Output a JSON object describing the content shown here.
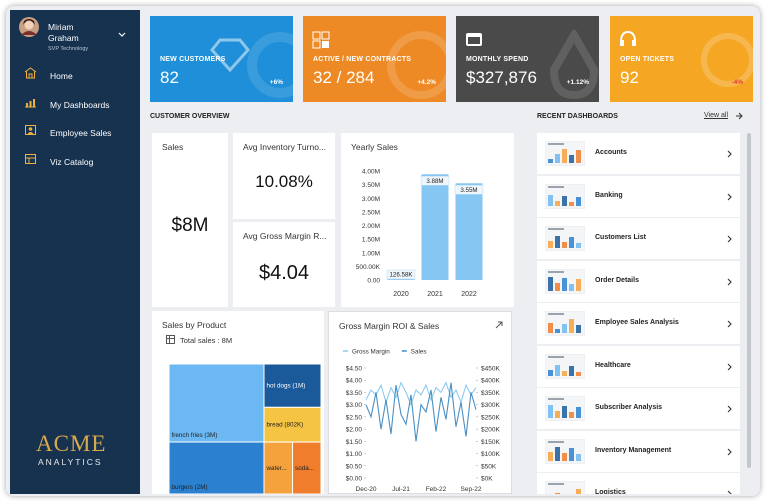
{
  "user": {
    "name": "Miriam Graham",
    "role": "SVP Technology"
  },
  "nav": [
    "Home",
    "My Dashboards",
    "Employee Sales",
    "Viz Catalog"
  ],
  "logo": {
    "top": "ACME",
    "bottom": "ANALYTICS"
  },
  "kpis": [
    {
      "title": "NEW CUSTOMERS",
      "value": "82",
      "change": "+6%"
    },
    {
      "title": "ACTIVE / NEW CONTRACTS",
      "value": "32 / 284",
      "change": "+4.2%"
    },
    {
      "title": "MONTHLY SPEND",
      "value": "$327,876",
      "change": "+1.12%"
    },
    {
      "title": "OPEN TICKETS",
      "value": "92",
      "change": "-4%"
    }
  ],
  "overview": {
    "title": "CUSTOMER OVERVIEW",
    "cards": [
      {
        "title": "Sales",
        "value": "$8M"
      },
      {
        "title": "Avg Inventory Turno...",
        "value": "10.08%"
      },
      {
        "title": "Avg Gross Margin R...",
        "value": "$4.04"
      }
    ]
  },
  "recent": {
    "title": "RECENT DASHBOARDS",
    "link": "View all",
    "items": [
      "Accounts",
      "Banking",
      "Customers List",
      "Order Details",
      "Employee Sales Analysis",
      "Healthcare",
      "Subscriber Analysis",
      "Inventory Management",
      "Logistics"
    ]
  },
  "chart_data": [
    {
      "type": "bar",
      "title": "Yearly Sales",
      "categories": [
        "2020",
        "2021",
        "2022"
      ],
      "values": [
        126580,
        3880000,
        3550000
      ],
      "value_labels": [
        "126.58K",
        "3.88M",
        "3.55M"
      ],
      "color": "#86c6f2",
      "ylim": [
        0,
        4000000
      ],
      "yticks": [
        {
          "value": 0,
          "label": "0.00"
        },
        {
          "value": 500000,
          "label": "500.00K"
        },
        {
          "value": 1000000,
          "label": "1.00M"
        },
        {
          "value": 1500000,
          "label": "1.50M"
        },
        {
          "value": 2000000,
          "label": "2.00M"
        },
        {
          "value": 2500000,
          "label": "2.50M"
        },
        {
          "value": 3000000,
          "label": "3.00M"
        },
        {
          "value": 3500000,
          "label": "3.50M"
        },
        {
          "value": 4000000,
          "label": "4.00M"
        }
      ]
    },
    {
      "type": "treemap",
      "title": "Sales by Product",
      "subtitle": "Total sales : 8M",
      "categories": [
        "french fries (3M)",
        "burgers (2M)",
        "hot dogs (1M)",
        "bread (802K)",
        "water...",
        "soda..."
      ],
      "values": [
        3000000,
        2000000,
        1000000,
        802000,
        600000,
        598000
      ],
      "colors": [
        "#6cb8f2",
        "#2b80d0",
        "#1a5a9a",
        "#f6c443",
        "#f6a23c",
        "#f07d2b"
      ]
    },
    {
      "type": "line",
      "title": "Gross Margin ROI & Sales",
      "categories": [
        "Dec-20",
        null,
        null,
        null,
        null,
        null,
        null,
        "Jul-21",
        null,
        null,
        null,
        null,
        null,
        null,
        "Feb-22",
        null,
        null,
        null,
        null,
        null,
        null,
        "Sep-22",
        null
      ],
      "series": [
        {
          "name": "Gross Margin",
          "color": "#8ccbf0",
          "values": [
            3.2,
            3.6,
            3.4,
            3.8,
            3.1,
            3.7,
            3.3,
            3.9,
            3.5,
            3.0,
            3.6,
            3.4,
            3.8,
            3.2,
            3.7,
            3.5,
            3.9,
            3.3,
            3.6,
            3.1,
            3.8,
            3.4,
            3.7
          ]
        },
        {
          "name": "Sales",
          "color": "#4a8fc4",
          "axis": "y2",
          "values": [
            300000,
            250000,
            350000,
            200000,
            320000,
            180000,
            380000,
            260000,
            220000,
            340000,
            150000,
            300000,
            270000,
            360000,
            190000,
            330000,
            240000,
            390000,
            210000,
            310000,
            170000,
            350000,
            280000
          ]
        }
      ],
      "ylim": [
        0,
        4.5
      ],
      "yticks": [
        {
          "value": 0,
          "label": "$0.00"
        },
        {
          "value": 0.5,
          "label": "$0.50"
        },
        {
          "value": 1,
          "label": "$1.00"
        },
        {
          "value": 1.5,
          "label": "$1.50"
        },
        {
          "value": 2,
          "label": "$2.00"
        },
        {
          "value": 2.5,
          "label": "$2.50"
        },
        {
          "value": 3,
          "label": "$3.00"
        },
        {
          "value": 3.5,
          "label": "$3.50"
        },
        {
          "value": 4,
          "label": "$4.00"
        },
        {
          "value": 4.5,
          "label": "$4.50"
        }
      ],
      "y2lim": [
        0,
        450000
      ],
      "y2ticks": [
        {
          "value": 0,
          "label": "$0K"
        },
        {
          "value": 50000,
          "label": "$50K"
        },
        {
          "value": 100000,
          "label": "$100K"
        },
        {
          "value": 150000,
          "label": "$150K"
        },
        {
          "value": 200000,
          "label": "$200K"
        },
        {
          "value": 250000,
          "label": "$250K"
        },
        {
          "value": 300000,
          "label": "$300K"
        },
        {
          "value": 350000,
          "label": "$350K"
        },
        {
          "value": 400000,
          "label": "$400K"
        },
        {
          "value": 450000,
          "label": "$450K"
        }
      ],
      "legend": "top"
    }
  ]
}
